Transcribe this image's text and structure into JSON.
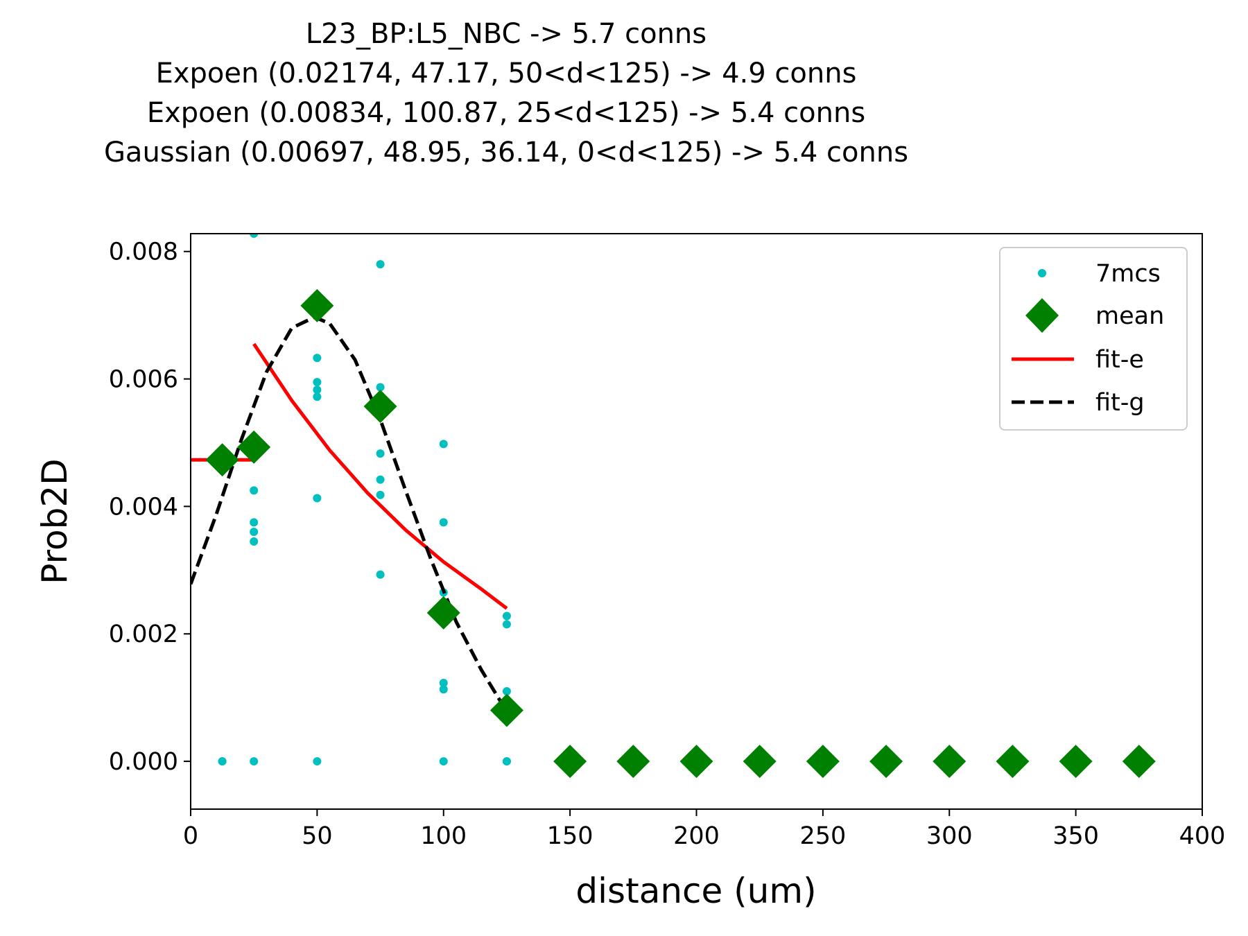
{
  "chart_data": {
    "type": "scatter",
    "title_lines": [
      "L23_BP:L5_NBC -> 5.7 conns",
      "Expoen (0.02174, 47.17, 50<d<125) -> 4.9 conns",
      "Expoen (0.00834, 100.87, 25<d<125) -> 5.4 conns",
      "Gaussian (0.00697, 48.95, 36.14, 0<d<125) -> 5.4 conns"
    ],
    "xlabel": "distance (um)",
    "ylabel": "Prob2D",
    "xlim": [
      0,
      400
    ],
    "ylim": [
      -0.00075,
      0.00828
    ],
    "xticks": [
      0,
      50,
      100,
      150,
      200,
      250,
      300,
      350,
      400
    ],
    "xtick_labels": [
      "0",
      "50",
      "100",
      "150",
      "200",
      "250",
      "300",
      "350",
      "400"
    ],
    "yticks": [
      0,
      0.002,
      0.004,
      0.006,
      0.008
    ],
    "ytick_labels": [
      "0.000",
      "0.002",
      "0.004",
      "0.006",
      "0.008"
    ],
    "legend_position": "top-right",
    "grid": false,
    "series": [
      {
        "name": "7mcs",
        "kind": "points",
        "color": "#00bfbf",
        "x": [
          12.5,
          12.5,
          25,
          25,
          25,
          25,
          25,
          25,
          50,
          50,
          50,
          50,
          50,
          50,
          75,
          75,
          75,
          75,
          75,
          75,
          100,
          100,
          100,
          100,
          100,
          100,
          125,
          125,
          125,
          125,
          125
        ],
        "y": [
          0.0,
          0.0,
          0.00828,
          0.00425,
          0.00375,
          0.0036,
          0.00345,
          0.0,
          0.00633,
          0.00595,
          0.00583,
          0.00572,
          0.00413,
          0.0,
          0.0078,
          0.00587,
          0.00483,
          0.00442,
          0.00418,
          0.00293,
          0.00498,
          0.00375,
          0.00265,
          0.00123,
          0.00113,
          0.0,
          0.00228,
          0.00215,
          0.0011,
          0.0,
          0.0
        ]
      },
      {
        "name": "mean",
        "kind": "diamonds",
        "color": "#008000",
        "x": [
          12.5,
          25,
          50,
          75,
          100,
          125,
          150,
          175,
          200,
          225,
          250,
          275,
          300,
          325,
          350,
          375
        ],
        "y": [
          0.00473,
          0.00493,
          0.00715,
          0.00557,
          0.00233,
          0.0008,
          0,
          0,
          0,
          0,
          0,
          0,
          0,
          0,
          0,
          0
        ]
      },
      {
        "name": "fit-e",
        "kind": "line",
        "color": "#ff0000",
        "segments": [
          {
            "x": [
              0,
              25
            ],
            "y": [
              0.00473,
              0.00473
            ]
          },
          {
            "x": [
              25,
              40,
              55,
              70,
              85,
              100,
              115,
              125
            ],
            "y": [
              0.00655,
              0.00566,
              0.00488,
              0.00421,
              0.00363,
              0.00313,
              0.0027,
              0.0024
            ]
          }
        ]
      },
      {
        "name": "fit-g",
        "kind": "dashed",
        "color": "#000000",
        "x": [
          0,
          10,
          20,
          30,
          40,
          49,
          55,
          65,
          75,
          85,
          95,
          105,
          115,
          125
        ],
        "y": [
          0.00278,
          0.00386,
          0.00504,
          0.00611,
          0.0068,
          0.00697,
          0.00687,
          0.0063,
          0.00536,
          0.00425,
          0.00317,
          0.00219,
          0.00143,
          0.00078
        ]
      }
    ]
  }
}
